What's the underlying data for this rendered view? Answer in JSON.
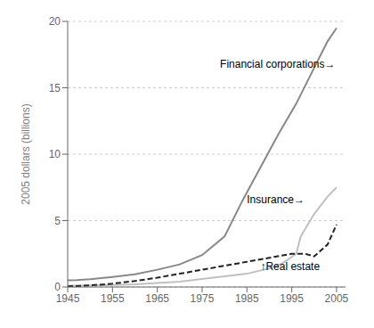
{
  "chart_data": {
    "type": "line",
    "ylabel": "2005 dollars (billions)",
    "xlim": [
      1945,
      2007
    ],
    "ylim": [
      0,
      20
    ],
    "xticks": [
      1945,
      1955,
      1965,
      1975,
      1985,
      1995,
      2005
    ],
    "yticks": [
      0,
      5,
      10,
      15,
      20
    ],
    "grid": "y",
    "series": [
      {
        "x": [
          1945,
          1947,
          1950,
          1955,
          1960,
          1965,
          1970,
          1975,
          1980,
          1984,
          1988,
          1992,
          1996,
          2000,
          2003,
          2005
        ],
        "values": [
          0.5,
          0.52,
          0.58,
          0.75,
          0.95,
          1.3,
          1.7,
          2.4,
          3.8,
          6.5,
          9.0,
          11.5,
          13.8,
          16.5,
          18.5,
          19.5
        ],
        "color": "#888888",
        "line_style": "solid"
      },
      {
        "x": [
          1945,
          1950,
          1955,
          1960,
          1965,
          1970,
          1975,
          1980,
          1985,
          1990,
          1993,
          1996,
          1997,
          2000,
          2003,
          2005
        ],
        "values": [
          0.1,
          0.12,
          0.15,
          0.2,
          0.3,
          0.4,
          0.6,
          0.8,
          1.0,
          1.4,
          1.8,
          2.5,
          3.8,
          5.5,
          6.8,
          7.5
        ],
        "color": "#c0c0c0",
        "line_style": "solid"
      },
      {
        "x": [
          1945,
          1950,
          1955,
          1960,
          1965,
          1970,
          1975,
          1980,
          1985,
          1990,
          1995,
          1998,
          2000,
          2003,
          2005
        ],
        "values": [
          0.05,
          0.12,
          0.25,
          0.45,
          0.7,
          1.0,
          1.3,
          1.6,
          1.9,
          2.2,
          2.5,
          2.5,
          2.3,
          3.2,
          4.7
        ],
        "color": "#222222",
        "line_style": "dashed"
      }
    ],
    "annotations": [
      {
        "x": 1979,
        "y": 16.8,
        "text": "Financial corporations→"
      },
      {
        "x": 1985,
        "y": 6.6,
        "text": "Insurance→"
      },
      {
        "x": 1988,
        "y": 1.55,
        "text": "↑Real estate"
      }
    ]
  }
}
